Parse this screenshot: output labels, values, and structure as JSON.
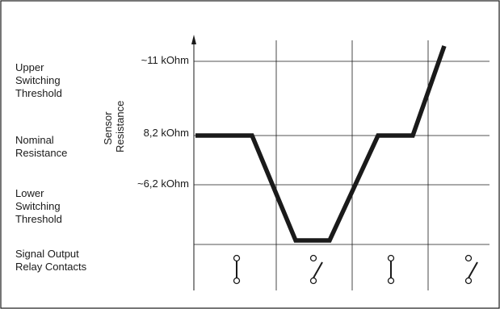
{
  "colors": {
    "border": "#1a1a1a",
    "grid": "#1a1a1a",
    "curve": "#1a1a1a",
    "text": "#1a1a1a",
    "background": "#ffffff"
  },
  "row_labels": {
    "upper": "Upper\nSwitching\nThreshold",
    "nominal": "Nominal\nResistance",
    "lower": "Lower\nSwitching\nThreshold",
    "output": "Signal Output\nRelay Contacts"
  },
  "axis_title": "Sensor\nResistance",
  "value_labels": {
    "upper": "~11 kOhm",
    "nominal": "8,2 kOhm",
    "lower": "~6,2 kOhm"
  },
  "relay_states": [
    "closed",
    "open",
    "closed",
    "open"
  ]
}
